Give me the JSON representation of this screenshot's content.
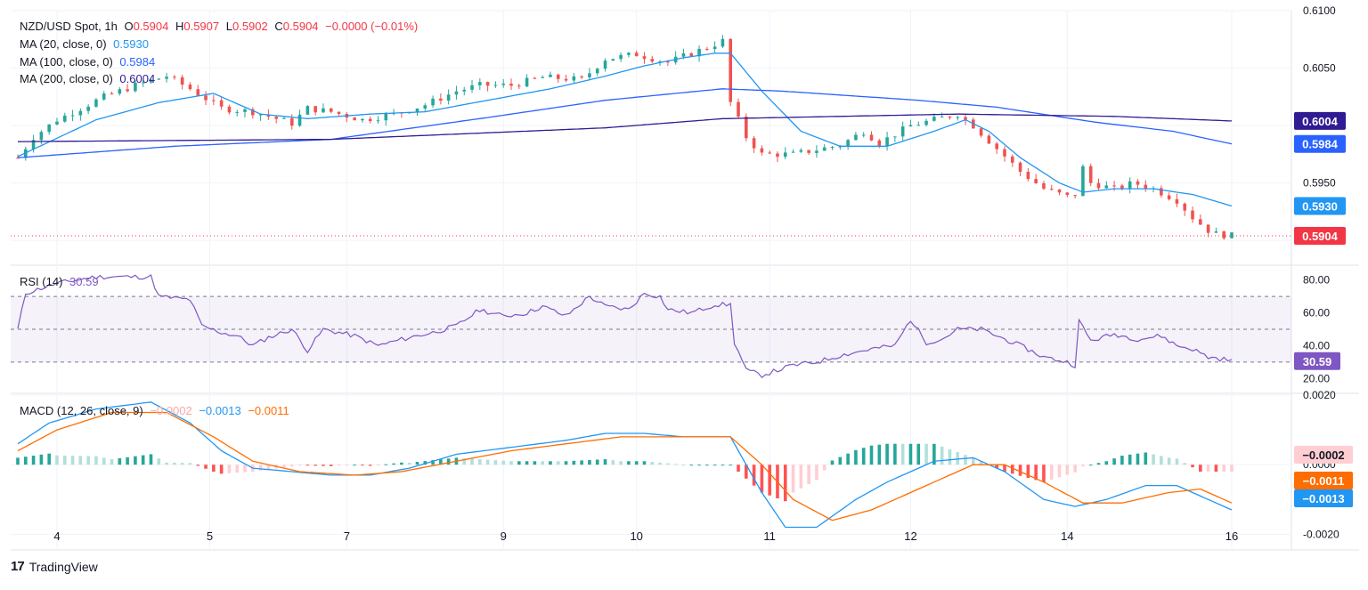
{
  "legend": {
    "symbol": "NZD/USD Spot, 1h",
    "o_label": "O",
    "o": "0.5904",
    "h_label": "H",
    "h": "0.5907",
    "l_label": "L",
    "l": "0.5902",
    "c_label": "C",
    "c": "0.5904",
    "chg": "−0.0000 (−0.01%)",
    "ma20_label": "MA (20, close, 0)",
    "ma20": "0.5930",
    "ma100_label": "MA (100, close, 0)",
    "ma100": "0.5984",
    "ma200_label": "MA (200, close, 0)",
    "ma200": "0.6004",
    "rsi_label": "RSI (14)",
    "rsi": "30.59",
    "macd_label": "MACD (12, 26, close, 9)",
    "macd_hist": "−0.0002",
    "macd_line": "−0.0013",
    "macd_signal": "−0.0011"
  },
  "brand": {
    "name": "TradingView"
  },
  "colors": {
    "up": "#26a69a",
    "down": "#ef5350",
    "ma20": "#2196f3",
    "ma100": "#2962ff",
    "ma200": "#311b92",
    "rsi": "#7e57c2",
    "macd": "#2196f3",
    "signal": "#ff6d00",
    "last": "#f23645"
  },
  "chart_data": [
    {
      "type": "candlestick",
      "title": "NZD/USD Spot, 1h",
      "x_ticks": [
        "4",
        "5",
        "7",
        "9",
        "10",
        "11",
        "12",
        "14",
        "16"
      ],
      "y_ticks": [
        "0.6100",
        "0.6050",
        "0.6000",
        "0.5950",
        "0.5900"
      ],
      "ylim": [
        0.588,
        0.61
      ],
      "price_labels": [
        "0.6004",
        "0.5984",
        "0.5930",
        "0.5904"
      ],
      "series": [
        {
          "name": "NZD/USD",
          "anchors": [
            [
              0,
              0.5972
            ],
            [
              4,
              0.599
            ],
            [
              10,
              0.6005
            ],
            [
              16,
              0.6015
            ],
            [
              22,
              0.6025
            ],
            [
              30,
              0.6035
            ],
            [
              38,
              0.6043
            ],
            [
              44,
              0.6032
            ],
            [
              52,
              0.6015
            ],
            [
              60,
              0.6012
            ],
            [
              70,
              0.6002
            ],
            [
              74,
              0.6015
            ],
            [
              80,
              0.6012
            ],
            [
              88,
              0.6005
            ],
            [
              96,
              0.601
            ],
            [
              104,
              0.6018
            ],
            [
              112,
              0.603
            ],
            [
              118,
              0.6035
            ],
            [
              126,
              0.6035
            ],
            [
              134,
              0.6042
            ],
            [
              144,
              0.604
            ],
            [
              150,
              0.6058
            ],
            [
              158,
              0.6062
            ],
            [
              166,
              0.6055
            ],
            [
              176,
              0.6068
            ],
            [
              181,
              0.6075
            ],
            [
              182,
              0.602
            ],
            [
              186,
              0.599
            ],
            [
              190,
              0.5975
            ],
            [
              198,
              0.5975
            ],
            [
              210,
              0.5983
            ],
            [
              216,
              0.5995
            ],
            [
              220,
              0.5985
            ],
            [
              228,
              0.6
            ],
            [
              234,
              0.6005
            ],
            [
              240,
              0.601
            ],
            [
              244,
              0.6
            ],
            [
              250,
              0.598
            ],
            [
              256,
              0.596
            ],
            [
              262,
              0.5945
            ],
            [
              268,
              0.5938
            ],
            [
              270,
              0.594
            ],
            [
              271,
              0.597
            ],
            [
              274,
              0.595
            ],
            [
              280,
              0.5945
            ],
            [
              285,
              0.595
            ],
            [
              290,
              0.5945
            ],
            [
              296,
              0.5935
            ],
            [
              300,
              0.592
            ],
            [
              305,
              0.5906
            ],
            [
              310,
              0.5904
            ]
          ]
        },
        {
          "name": "MA (20, close, 0)",
          "anchors": [
            [
              0,
              0.5973
            ],
            [
              20,
              0.6005
            ],
            [
              36,
              0.602
            ],
            [
              50,
              0.6028
            ],
            [
              62,
              0.601
            ],
            [
              74,
              0.6006
            ],
            [
              90,
              0.601
            ],
            [
              104,
              0.6012
            ],
            [
              120,
              0.6022
            ],
            [
              136,
              0.6032
            ],
            [
              150,
              0.6043
            ],
            [
              160,
              0.6052
            ],
            [
              170,
              0.6059
            ],
            [
              178,
              0.6063
            ],
            [
              182,
              0.6063
            ],
            [
              190,
              0.603
            ],
            [
              200,
              0.5995
            ],
            [
              210,
              0.5982
            ],
            [
              222,
              0.5982
            ],
            [
              234,
              0.5995
            ],
            [
              242,
              0.6005
            ],
            [
              248,
              0.5995
            ],
            [
              256,
              0.5972
            ],
            [
              266,
              0.595
            ],
            [
              272,
              0.5942
            ],
            [
              280,
              0.5945
            ],
            [
              290,
              0.5945
            ],
            [
              300,
              0.594
            ],
            [
              310,
              0.593
            ]
          ]
        },
        {
          "name": "MA (100, close, 0)",
          "anchors": [
            [
              0,
              0.5972
            ],
            [
              40,
              0.5982
            ],
            [
              80,
              0.5988
            ],
            [
              120,
              0.6007
            ],
            [
              150,
              0.6022
            ],
            [
              180,
              0.6032
            ],
            [
              195,
              0.603
            ],
            [
              230,
              0.6022
            ],
            [
              250,
              0.6016
            ],
            [
              275,
              0.6003
            ],
            [
              295,
              0.5995
            ],
            [
              310,
              0.5984
            ]
          ]
        },
        {
          "name": "MA (200, close, 0)",
          "anchors": [
            [
              0,
              0.5986
            ],
            [
              80,
              0.5988
            ],
            [
              150,
              0.5998
            ],
            [
              180,
              0.6006
            ],
            [
              240,
              0.601
            ],
            [
              280,
              0.6008
            ],
            [
              310,
              0.6004
            ]
          ]
        }
      ]
    },
    {
      "type": "line",
      "title": "RSI (14)",
      "y_ticks": [
        "80.00",
        "60.00",
        "40.00",
        "20.00"
      ],
      "ylim": [
        12,
        88
      ],
      "bands": {
        "upper": 70,
        "middle": 50,
        "lower": 30
      },
      "series": [
        {
          "name": "RSI",
          "anchors": [
            [
              0,
              50
            ],
            [
              2,
              72
            ],
            [
              10,
              78
            ],
            [
              20,
              82
            ],
            [
              34,
              82
            ],
            [
              36,
              70
            ],
            [
              44,
              68
            ],
            [
              47,
              52
            ],
            [
              52,
              48
            ],
            [
              56,
              46
            ],
            [
              60,
              40
            ],
            [
              64,
              45
            ],
            [
              70,
              50
            ],
            [
              74,
              37
            ],
            [
              78,
              50
            ],
            [
              86,
              46
            ],
            [
              92,
              40
            ],
            [
              100,
              45
            ],
            [
              106,
              48
            ],
            [
              112,
              52
            ],
            [
              118,
              62
            ],
            [
              124,
              58
            ],
            [
              130,
              60
            ],
            [
              134,
              64
            ],
            [
              140,
              58
            ],
            [
              146,
              70
            ],
            [
              150,
              64
            ],
            [
              156,
              62
            ],
            [
              160,
              72
            ],
            [
              164,
              70
            ],
            [
              166,
              62
            ],
            [
              172,
              60
            ],
            [
              178,
              65
            ],
            [
              182,
              65
            ],
            [
              183,
              42
            ],
            [
              186,
              25
            ],
            [
              190,
              22
            ],
            [
              198,
              28
            ],
            [
              204,
              30
            ],
            [
              210,
              34
            ],
            [
              218,
              38
            ],
            [
              224,
              40
            ],
            [
              228,
              56
            ],
            [
              232,
              42
            ],
            [
              236,
              44
            ],
            [
              240,
              50
            ],
            [
              246,
              50
            ],
            [
              250,
              46
            ],
            [
              256,
              40
            ],
            [
              262,
              33
            ],
            [
              268,
              30
            ],
            [
              270,
              28
            ],
            [
              271,
              55
            ],
            [
              274,
              43
            ],
            [
              280,
              47
            ],
            [
              286,
              44
            ],
            [
              292,
              46
            ],
            [
              296,
              40
            ],
            [
              300,
              38
            ],
            [
              304,
              33
            ],
            [
              310,
              31
            ]
          ]
        }
      ]
    },
    {
      "type": "line",
      "title": "MACD (12, 26, close, 9)",
      "y_ticks": [
        "0.0020",
        "0.0000",
        "-0.0020"
      ],
      "ylim": [
        -0.0024,
        0.002
      ],
      "price_labels": [
        "−0.0002",
        "−0.0011",
        "−0.0013"
      ],
      "series": [
        {
          "name": "MACD",
          "anchors": [
            [
              0,
              0.0006
            ],
            [
              8,
              0.0012
            ],
            [
              20,
              0.0016
            ],
            [
              34,
              0.0018
            ],
            [
              44,
              0.0012
            ],
            [
              52,
              0.0004
            ],
            [
              60,
              -0.0001
            ],
            [
              70,
              -0.0002
            ],
            [
              80,
              -0.0003
            ],
            [
              90,
              -0.0003
            ],
            [
              100,
              -0.0001
            ],
            [
              112,
              0.0003
            ],
            [
              126,
              0.0005
            ],
            [
              140,
              0.0007
            ],
            [
              150,
              0.0009
            ],
            [
              160,
              0.0009
            ],
            [
              170,
              0.0008
            ],
            [
              182,
              0.0008
            ],
            [
              190,
              -0.0008
            ],
            [
              196,
              -0.0018
            ],
            [
              204,
              -0.0018
            ],
            [
              214,
              -0.001
            ],
            [
              222,
              -0.0005
            ],
            [
              234,
              0.0001
            ],
            [
              244,
              0.0002
            ],
            [
              252,
              -0.0002
            ],
            [
              262,
              -0.001
            ],
            [
              270,
              -0.0012
            ],
            [
              278,
              -0.001
            ],
            [
              288,
              -0.0006
            ],
            [
              296,
              -0.0006
            ],
            [
              304,
              -0.001
            ],
            [
              310,
              -0.0013
            ]
          ]
        },
        {
          "name": "Signal",
          "anchors": [
            [
              0,
              0.0004
            ],
            [
              10,
              0.001
            ],
            [
              24,
              0.0015
            ],
            [
              38,
              0.0015
            ],
            [
              50,
              0.0008
            ],
            [
              60,
              0.0001
            ],
            [
              72,
              -0.0002
            ],
            [
              86,
              -0.0003
            ],
            [
              98,
              -0.0002
            ],
            [
              112,
              0.0001
            ],
            [
              126,
              0.0004
            ],
            [
              140,
              0.0006
            ],
            [
              154,
              0.0008
            ],
            [
              168,
              0.0008
            ],
            [
              182,
              0.0008
            ],
            [
              190,
              0.0
            ],
            [
              198,
              -0.001
            ],
            [
              208,
              -0.0016
            ],
            [
              218,
              -0.0013
            ],
            [
              230,
              -0.0007
            ],
            [
              244,
              0.0
            ],
            [
              252,
              0.0
            ],
            [
              262,
              -0.0005
            ],
            [
              272,
              -0.0011
            ],
            [
              282,
              -0.0011
            ],
            [
              294,
              -0.0008
            ],
            [
              302,
              -0.0007
            ],
            [
              310,
              -0.0011
            ]
          ]
        }
      ]
    }
  ]
}
